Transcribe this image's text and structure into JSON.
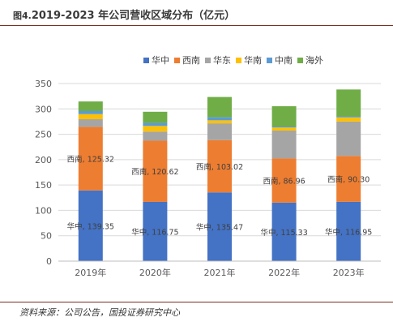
{
  "figure": {
    "number": "图4.",
    "title": "2019-2023 年公司营收区域分布（亿元）",
    "source": "资料来源：公司公告，国投证券研究中心"
  },
  "chart_data": {
    "type": "bar",
    "stacked": true,
    "categories": [
      "2019年",
      "2020年",
      "2021年",
      "2022年",
      "2023年"
    ],
    "series": [
      {
        "name": "华中",
        "color": "#4472C4",
        "values": [
          139.35,
          116.75,
          135.47,
          115.33,
          116.95
        ]
      },
      {
        "name": "西南",
        "color": "#ED7D31",
        "values": [
          125.32,
          120.62,
          103.02,
          86.96,
          90.3
        ]
      },
      {
        "name": "华东",
        "color": "#A5A5A5",
        "values": [
          15,
          18,
          33,
          55,
          68
        ]
      },
      {
        "name": "华南",
        "color": "#FFC000",
        "values": [
          10,
          11,
          6,
          6,
          8
        ]
      },
      {
        "name": "中南",
        "color": "#5B9BD5",
        "values": [
          6,
          6,
          6,
          2,
          2
        ]
      },
      {
        "name": "海外",
        "color": "#70AD47",
        "values": [
          19,
          22,
          40,
          40,
          53
        ]
      }
    ],
    "data_labels": [
      {
        "series": "西南",
        "labels": [
          "西南, 125.32",
          "西南, 120.62",
          "西南, 103.02",
          "西南, 86.96",
          "西南, 90.30"
        ]
      },
      {
        "series": "华中",
        "labels": [
          "华中, 139.35",
          "华中, 116.75",
          "华中, 135.47",
          "华中, 115.33",
          "华中, 116.95"
        ]
      }
    ],
    "ylim": [
      0,
      350
    ],
    "yticks": [
      0,
      50,
      100,
      150,
      200,
      250,
      300,
      350
    ],
    "grid": true,
    "legend": "top"
  }
}
